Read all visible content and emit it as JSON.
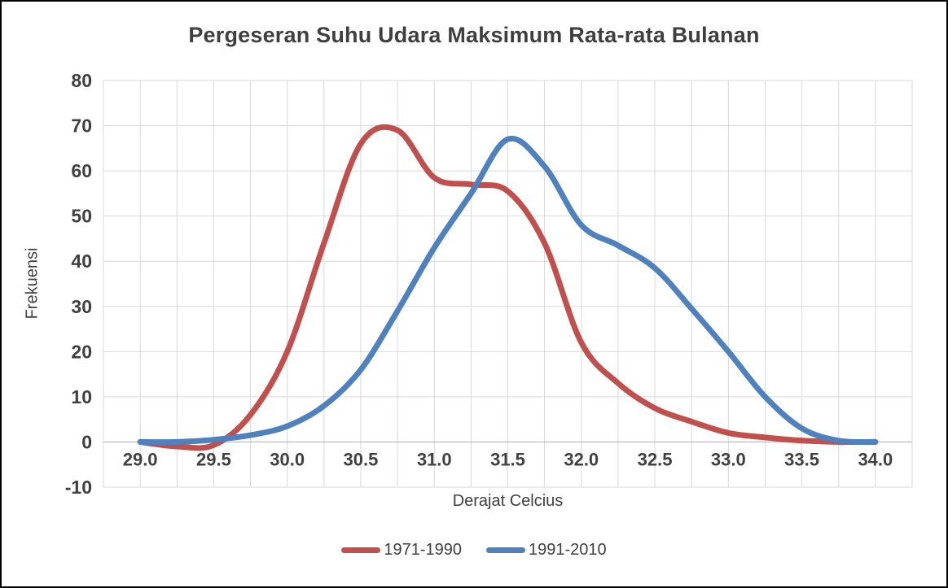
{
  "chart_data": {
    "type": "line",
    "title": "Pergeseran Suhu Udara Maksimum Rata-rata Bulanan",
    "xlabel": "Derajat Celcius",
    "ylabel": "Frekuensi",
    "xlim": [
      28.75,
      34.25
    ],
    "ylim": [
      -10,
      80
    ],
    "x_grid_step": 0.25,
    "x_tick_labels": [
      "29.0",
      "29.5",
      "30.0",
      "30.5",
      "31.0",
      "31.5",
      "32.0",
      "32.5",
      "33.0",
      "33.5",
      "34.0"
    ],
    "y_ticks": [
      80,
      70,
      60,
      50,
      40,
      30,
      20,
      10,
      0,
      -10
    ],
    "grid": true,
    "legend_position": "bottom",
    "x": [
      29.0,
      29.25,
      29.5,
      29.75,
      30.0,
      30.25,
      30.5,
      30.75,
      31.0,
      31.25,
      31.5,
      31.75,
      32.0,
      32.25,
      32.5,
      32.75,
      33.0,
      33.25,
      33.5,
      33.75,
      34.0
    ],
    "series": [
      {
        "name": "1971-1990",
        "color": "#C0504D",
        "values": [
          0,
          -1,
          -0.7,
          6,
          20,
          44,
          66,
          69,
          58.5,
          57,
          55.5,
          44,
          22,
          13,
          7.5,
          4.5,
          2,
          1,
          0.3,
          0,
          0
        ]
      },
      {
        "name": "1991-2010",
        "color": "#4F81BD",
        "values": [
          0,
          0,
          0.5,
          1.5,
          3.5,
          8,
          16,
          29,
          43,
          55,
          67,
          61,
          48,
          43.5,
          38.5,
          29.5,
          20,
          10,
          3,
          0.3,
          0
        ]
      }
    ],
    "colors": {
      "grid": "#D9D9D9",
      "axis": "#BFBFBF",
      "text": "#404040"
    }
  }
}
